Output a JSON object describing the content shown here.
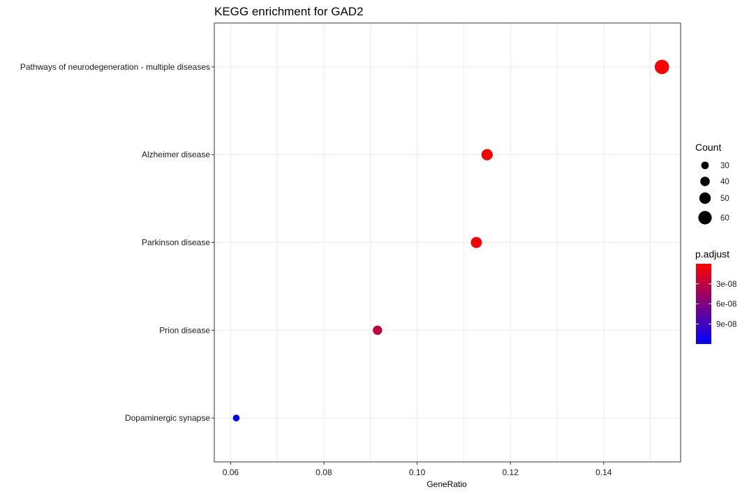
{
  "chart_data": {
    "type": "scatter",
    "title": "KEGG enrichment for GAD2",
    "xlabel": "GeneRatio",
    "ylabel": "",
    "xlim": [
      0.0565,
      0.1565
    ],
    "x_ticks": [
      0.06,
      0.08,
      0.1,
      0.12,
      0.14
    ],
    "x_tick_labels": [
      "0.06",
      "0.08",
      "0.10",
      "0.12",
      "0.14"
    ],
    "categories": [
      "Pathways of neurodegeneration - multiple diseases",
      "Alzheimer disease",
      "Parkinson disease",
      "Prion disease",
      "Dopaminergic synapse"
    ],
    "points": [
      {
        "category": "Pathways of neurodegeneration - multiple diseases",
        "x": 0.1525,
        "count": 65,
        "p_adjust": 1e-10
      },
      {
        "category": "Alzheimer disease",
        "x": 0.115,
        "count": 49,
        "p_adjust": 2e-09
      },
      {
        "category": "Parkinson disease",
        "x": 0.1127,
        "count": 48,
        "p_adjust": 2.5e-09
      },
      {
        "category": "Prion disease",
        "x": 0.0915,
        "count": 39,
        "p_adjust": 3e-08
      },
      {
        "category": "Dopaminergic synapse",
        "x": 0.0612,
        "count": 26,
        "p_adjust": 1.2e-07
      }
    ],
    "grid": true,
    "legend_position": "right",
    "size_legend": {
      "title": "Count",
      "values": [
        30,
        40,
        50,
        60
      ],
      "labels": [
        "30",
        "40",
        "50",
        "60"
      ]
    },
    "color_legend": {
      "title": "p.adjust",
      "range": [
        0,
        1.2e-07
      ],
      "ticks": [
        3e-08,
        6e-08,
        9e-08
      ],
      "tick_labels": [
        "3e-08",
        "6e-08",
        "9e-08"
      ],
      "low_color": "#FF0000",
      "high_color": "#0000FF"
    }
  }
}
